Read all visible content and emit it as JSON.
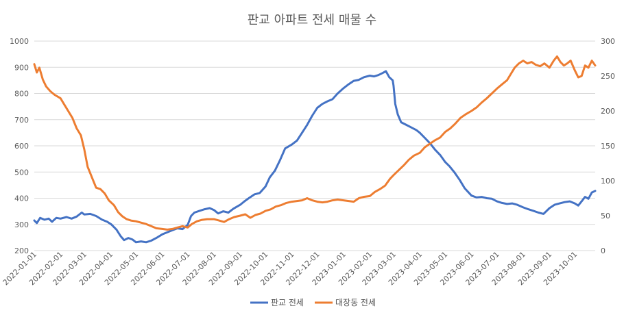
{
  "chart_data": {
    "type": "line",
    "title": "판교 아파트 전세 매물 수",
    "x_ticks": [
      "2022-01-01",
      "2022-02-01",
      "2022-03-01",
      "2022-04-01",
      "2022-05-01",
      "2022-06-01",
      "2022-07-01",
      "2022-08-01",
      "2022-09-01",
      "2022-10-01",
      "2022-11-01",
      "2022-12-01",
      "2023-01-01",
      "2023-02-01",
      "2023-03-01",
      "2023-04-01",
      "2023-05-01",
      "2023-06-01",
      "2023-07-01",
      "2023-08-01",
      "2023-09-01",
      "2023-10-01"
    ],
    "x_range": [
      "2022-01-01",
      "2023-10-25"
    ],
    "y_left": {
      "min": 200,
      "max": 1000,
      "step": 100,
      "ticks": [
        "200",
        "300",
        "400",
        "500",
        "600",
        "700",
        "800",
        "900",
        "1000"
      ]
    },
    "y_right": {
      "min": 0,
      "max": 300,
      "step": 50,
      "ticks": [
        "0",
        "50",
        "100",
        "150",
        "200",
        "250",
        "300"
      ]
    },
    "grid": true,
    "legend_position": "bottom",
    "series": [
      {
        "name": "판교 전세",
        "axis": "left",
        "color": "#4472C4",
        "points": [
          [
            "2022-01-01",
            315
          ],
          [
            "2022-01-04",
            305
          ],
          [
            "2022-01-08",
            325
          ],
          [
            "2022-01-13",
            318
          ],
          [
            "2022-01-18",
            322
          ],
          [
            "2022-01-22",
            310
          ],
          [
            "2022-01-27",
            325
          ],
          [
            "2022-02-01",
            322
          ],
          [
            "2022-02-08",
            328
          ],
          [
            "2022-02-14",
            322
          ],
          [
            "2022-02-20",
            330
          ],
          [
            "2022-02-26",
            345
          ],
          [
            "2022-03-01",
            338
          ],
          [
            "2022-03-08",
            340
          ],
          [
            "2022-03-15",
            332
          ],
          [
            "2022-03-22",
            318
          ],
          [
            "2022-03-28",
            310
          ],
          [
            "2022-04-02",
            300
          ],
          [
            "2022-04-08",
            280
          ],
          [
            "2022-04-13",
            255
          ],
          [
            "2022-04-17",
            240
          ],
          [
            "2022-04-22",
            248
          ],
          [
            "2022-04-27",
            242
          ],
          [
            "2022-05-01",
            232
          ],
          [
            "2022-05-07",
            235
          ],
          [
            "2022-05-13",
            232
          ],
          [
            "2022-05-19",
            238
          ],
          [
            "2022-05-25",
            248
          ],
          [
            "2022-06-01",
            262
          ],
          [
            "2022-06-07",
            270
          ],
          [
            "2022-06-13",
            278
          ],
          [
            "2022-06-19",
            285
          ],
          [
            "2022-06-25",
            282
          ],
          [
            "2022-07-01",
            298
          ],
          [
            "2022-07-05",
            332
          ],
          [
            "2022-07-09",
            345
          ],
          [
            "2022-07-15",
            352
          ],
          [
            "2022-07-21",
            358
          ],
          [
            "2022-07-27",
            362
          ],
          [
            "2022-08-01",
            355
          ],
          [
            "2022-08-06",
            342
          ],
          [
            "2022-08-12",
            350
          ],
          [
            "2022-08-18",
            345
          ],
          [
            "2022-08-24",
            360
          ],
          [
            "2022-09-01",
            375
          ],
          [
            "2022-09-06",
            388
          ],
          [
            "2022-09-12",
            402
          ],
          [
            "2022-09-18",
            415
          ],
          [
            "2022-09-24",
            420
          ],
          [
            "2022-10-01",
            445
          ],
          [
            "2022-10-06",
            480
          ],
          [
            "2022-10-12",
            505
          ],
          [
            "2022-10-18",
            545
          ],
          [
            "2022-10-24",
            590
          ],
          [
            "2022-11-01",
            605
          ],
          [
            "2022-11-07",
            620
          ],
          [
            "2022-11-13",
            650
          ],
          [
            "2022-11-19",
            680
          ],
          [
            "2022-11-25",
            715
          ],
          [
            "2022-12-01",
            745
          ],
          [
            "2022-12-07",
            760
          ],
          [
            "2022-12-13",
            770
          ],
          [
            "2022-12-19",
            778
          ],
          [
            "2022-12-25",
            800
          ],
          [
            "2023-01-01",
            820
          ],
          [
            "2023-01-07",
            835
          ],
          [
            "2023-01-13",
            848
          ],
          [
            "2023-01-19",
            852
          ],
          [
            "2023-01-25",
            862
          ],
          [
            "2023-02-01",
            868
          ],
          [
            "2023-02-06",
            865
          ],
          [
            "2023-02-11",
            870
          ],
          [
            "2023-02-16",
            878
          ],
          [
            "2023-02-20",
            885
          ],
          [
            "2023-02-24",
            862
          ],
          [
            "2023-02-28",
            850
          ],
          [
            "2023-03-01",
            830
          ],
          [
            "2023-03-03",
            760
          ],
          [
            "2023-03-06",
            720
          ],
          [
            "2023-03-10",
            690
          ],
          [
            "2023-03-16",
            680
          ],
          [
            "2023-03-22",
            670
          ],
          [
            "2023-03-28",
            660
          ],
          [
            "2023-04-01",
            650
          ],
          [
            "2023-04-07",
            630
          ],
          [
            "2023-04-13",
            610
          ],
          [
            "2023-04-19",
            585
          ],
          [
            "2023-04-25",
            565
          ],
          [
            "2023-05-01",
            538
          ],
          [
            "2023-05-06",
            522
          ],
          [
            "2023-05-12",
            498
          ],
          [
            "2023-05-18",
            470
          ],
          [
            "2023-05-24",
            438
          ],
          [
            "2023-06-01",
            410
          ],
          [
            "2023-06-07",
            403
          ],
          [
            "2023-06-13",
            405
          ],
          [
            "2023-06-19",
            400
          ],
          [
            "2023-06-25",
            398
          ],
          [
            "2023-07-01",
            388
          ],
          [
            "2023-07-07",
            382
          ],
          [
            "2023-07-13",
            378
          ],
          [
            "2023-07-19",
            380
          ],
          [
            "2023-07-25",
            375
          ],
          [
            "2023-08-01",
            365
          ],
          [
            "2023-08-07",
            358
          ],
          [
            "2023-08-13",
            352
          ],
          [
            "2023-08-19",
            345
          ],
          [
            "2023-08-25",
            340
          ],
          [
            "2023-09-01",
            362
          ],
          [
            "2023-09-07",
            375
          ],
          [
            "2023-09-13",
            380
          ],
          [
            "2023-09-19",
            385
          ],
          [
            "2023-09-25",
            388
          ],
          [
            "2023-10-01",
            380
          ],
          [
            "2023-10-05",
            372
          ],
          [
            "2023-10-09",
            388
          ],
          [
            "2023-10-13",
            405
          ],
          [
            "2023-10-17",
            398
          ],
          [
            "2023-10-21",
            422
          ],
          [
            "2023-10-25",
            428
          ]
        ]
      },
      {
        "name": "대장동 전세",
        "axis": "right",
        "color": "#ED7D31",
        "points": [
          [
            "2022-01-01",
            267
          ],
          [
            "2022-01-04",
            255
          ],
          [
            "2022-01-07",
            262
          ],
          [
            "2022-01-11",
            245
          ],
          [
            "2022-01-15",
            235
          ],
          [
            "2022-01-20",
            228
          ],
          [
            "2022-01-25",
            223
          ],
          [
            "2022-02-01",
            218
          ],
          [
            "2022-02-05",
            210
          ],
          [
            "2022-02-10",
            200
          ],
          [
            "2022-02-15",
            190
          ],
          [
            "2022-02-20",
            175
          ],
          [
            "2022-02-25",
            165
          ],
          [
            "2022-03-01",
            145
          ],
          [
            "2022-03-05",
            120
          ],
          [
            "2022-03-10",
            105
          ],
          [
            "2022-03-15",
            90
          ],
          [
            "2022-03-20",
            88
          ],
          [
            "2022-03-25",
            82
          ],
          [
            "2022-03-30",
            72
          ],
          [
            "2022-04-05",
            65
          ],
          [
            "2022-04-10",
            55
          ],
          [
            "2022-04-15",
            49
          ],
          [
            "2022-04-20",
            45
          ],
          [
            "2022-04-25",
            43
          ],
          [
            "2022-05-01",
            42
          ],
          [
            "2022-05-07",
            40
          ],
          [
            "2022-05-13",
            38
          ],
          [
            "2022-05-19",
            35
          ],
          [
            "2022-05-25",
            32
          ],
          [
            "2022-06-01",
            31
          ],
          [
            "2022-06-07",
            30
          ],
          [
            "2022-06-13",
            31
          ],
          [
            "2022-06-19",
            33
          ],
          [
            "2022-06-25",
            35
          ],
          [
            "2022-07-01",
            33
          ],
          [
            "2022-07-06",
            38
          ],
          [
            "2022-07-12",
            42
          ],
          [
            "2022-07-18",
            44
          ],
          [
            "2022-07-24",
            45
          ],
          [
            "2022-08-01",
            45
          ],
          [
            "2022-08-07",
            43
          ],
          [
            "2022-08-13",
            41
          ],
          [
            "2022-08-19",
            45
          ],
          [
            "2022-08-25",
            48
          ],
          [
            "2022-09-01",
            50
          ],
          [
            "2022-09-07",
            52
          ],
          [
            "2022-09-13",
            47
          ],
          [
            "2022-09-19",
            51
          ],
          [
            "2022-09-25",
            53
          ],
          [
            "2022-10-01",
            57
          ],
          [
            "2022-10-07",
            59
          ],
          [
            "2022-10-13",
            63
          ],
          [
            "2022-10-19",
            65
          ],
          [
            "2022-10-25",
            68
          ],
          [
            "2022-11-01",
            70
          ],
          [
            "2022-11-07",
            71
          ],
          [
            "2022-11-13",
            72
          ],
          [
            "2022-11-19",
            75
          ],
          [
            "2022-11-25",
            72
          ],
          [
            "2022-12-01",
            70
          ],
          [
            "2022-12-07",
            69
          ],
          [
            "2022-12-13",
            70
          ],
          [
            "2022-12-19",
            72
          ],
          [
            "2022-12-25",
            73
          ],
          [
            "2023-01-01",
            72
          ],
          [
            "2023-01-07",
            71
          ],
          [
            "2023-01-13",
            70
          ],
          [
            "2023-01-19",
            75
          ],
          [
            "2023-01-25",
            77
          ],
          [
            "2023-02-01",
            78
          ],
          [
            "2023-02-07",
            84
          ],
          [
            "2023-02-13",
            88
          ],
          [
            "2023-02-19",
            93
          ],
          [
            "2023-02-25",
            103
          ],
          [
            "2023-03-01",
            108
          ],
          [
            "2023-03-07",
            115
          ],
          [
            "2023-03-13",
            122
          ],
          [
            "2023-03-19",
            130
          ],
          [
            "2023-03-25",
            136
          ],
          [
            "2023-04-01",
            140
          ],
          [
            "2023-04-07",
            148
          ],
          [
            "2023-04-13",
            153
          ],
          [
            "2023-04-19",
            158
          ],
          [
            "2023-04-25",
            162
          ],
          [
            "2023-05-01",
            170
          ],
          [
            "2023-05-07",
            175
          ],
          [
            "2023-05-13",
            182
          ],
          [
            "2023-05-19",
            190
          ],
          [
            "2023-05-25",
            195
          ],
          [
            "2023-06-01",
            200
          ],
          [
            "2023-06-07",
            205
          ],
          [
            "2023-06-13",
            212
          ],
          [
            "2023-06-19",
            218
          ],
          [
            "2023-06-25",
            225
          ],
          [
            "2023-07-01",
            232
          ],
          [
            "2023-07-07",
            238
          ],
          [
            "2023-07-13",
            244
          ],
          [
            "2023-07-17",
            252
          ],
          [
            "2023-07-22",
            262
          ],
          [
            "2023-07-27",
            268
          ],
          [
            "2023-08-01",
            272
          ],
          [
            "2023-08-06",
            268
          ],
          [
            "2023-08-11",
            270
          ],
          [
            "2023-08-16",
            266
          ],
          [
            "2023-08-21",
            264
          ],
          [
            "2023-08-26",
            268
          ],
          [
            "2023-09-01",
            262
          ],
          [
            "2023-09-06",
            272
          ],
          [
            "2023-09-10",
            278
          ],
          [
            "2023-09-14",
            270
          ],
          [
            "2023-09-18",
            265
          ],
          [
            "2023-09-22",
            268
          ],
          [
            "2023-09-26",
            272
          ],
          [
            "2023-10-01",
            258
          ],
          [
            "2023-10-05",
            248
          ],
          [
            "2023-10-09",
            250
          ],
          [
            "2023-10-13",
            265
          ],
          [
            "2023-10-17",
            262
          ],
          [
            "2023-10-21",
            272
          ],
          [
            "2023-10-25",
            265
          ]
        ]
      }
    ]
  }
}
